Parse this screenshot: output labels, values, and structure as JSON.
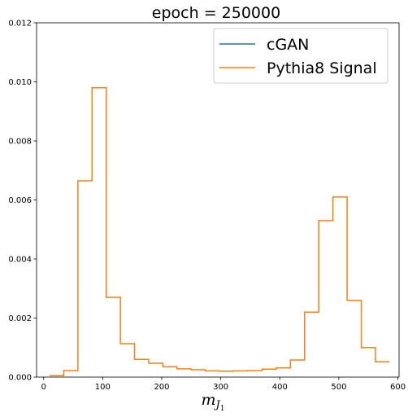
{
  "chart_data": {
    "type": "line",
    "title": "epoch = 250000",
    "xlabel": {
      "main": "m",
      "sub": "J",
      "subsub": "1"
    },
    "ylabel": "",
    "xlim": [
      -12,
      602
    ],
    "ylim": [
      0,
      0.012
    ],
    "xticks": [
      0,
      100,
      200,
      300,
      400,
      500,
      600
    ],
    "xtick_labels": [
      "0",
      "100",
      "200",
      "300",
      "400",
      "500",
      "600"
    ],
    "yticks": [
      0,
      0.002,
      0.004,
      0.006,
      0.008,
      0.01,
      0.012
    ],
    "ytick_labels": [
      "0.000",
      "0.002",
      "0.004",
      "0.006",
      "0.008",
      "0.010",
      "0.012"
    ],
    "grid": false,
    "legend_position": "upper-right",
    "bin_edges": [
      10,
      34,
      58,
      82,
      106,
      130,
      154,
      178,
      202,
      226,
      250,
      274,
      298,
      322,
      346,
      370,
      394,
      418,
      442,
      466,
      490,
      514,
      538,
      562,
      586
    ],
    "series": [
      {
        "name": "cGAN",
        "color": "#1f77b4",
        "values": []
      },
      {
        "name": "Pythia8 Signal",
        "color": "#ff7f0e",
        "values": [
          5e-05,
          0.00022,
          0.00665,
          0.0098,
          0.0027,
          0.00113,
          0.0006,
          0.00047,
          0.00035,
          0.00028,
          0.00025,
          0.00021,
          0.0002,
          0.00021,
          0.00022,
          0.00027,
          0.00031,
          0.00058,
          0.0022,
          0.0053,
          0.0061,
          0.0026,
          0.001,
          0.00052
        ]
      }
    ]
  }
}
